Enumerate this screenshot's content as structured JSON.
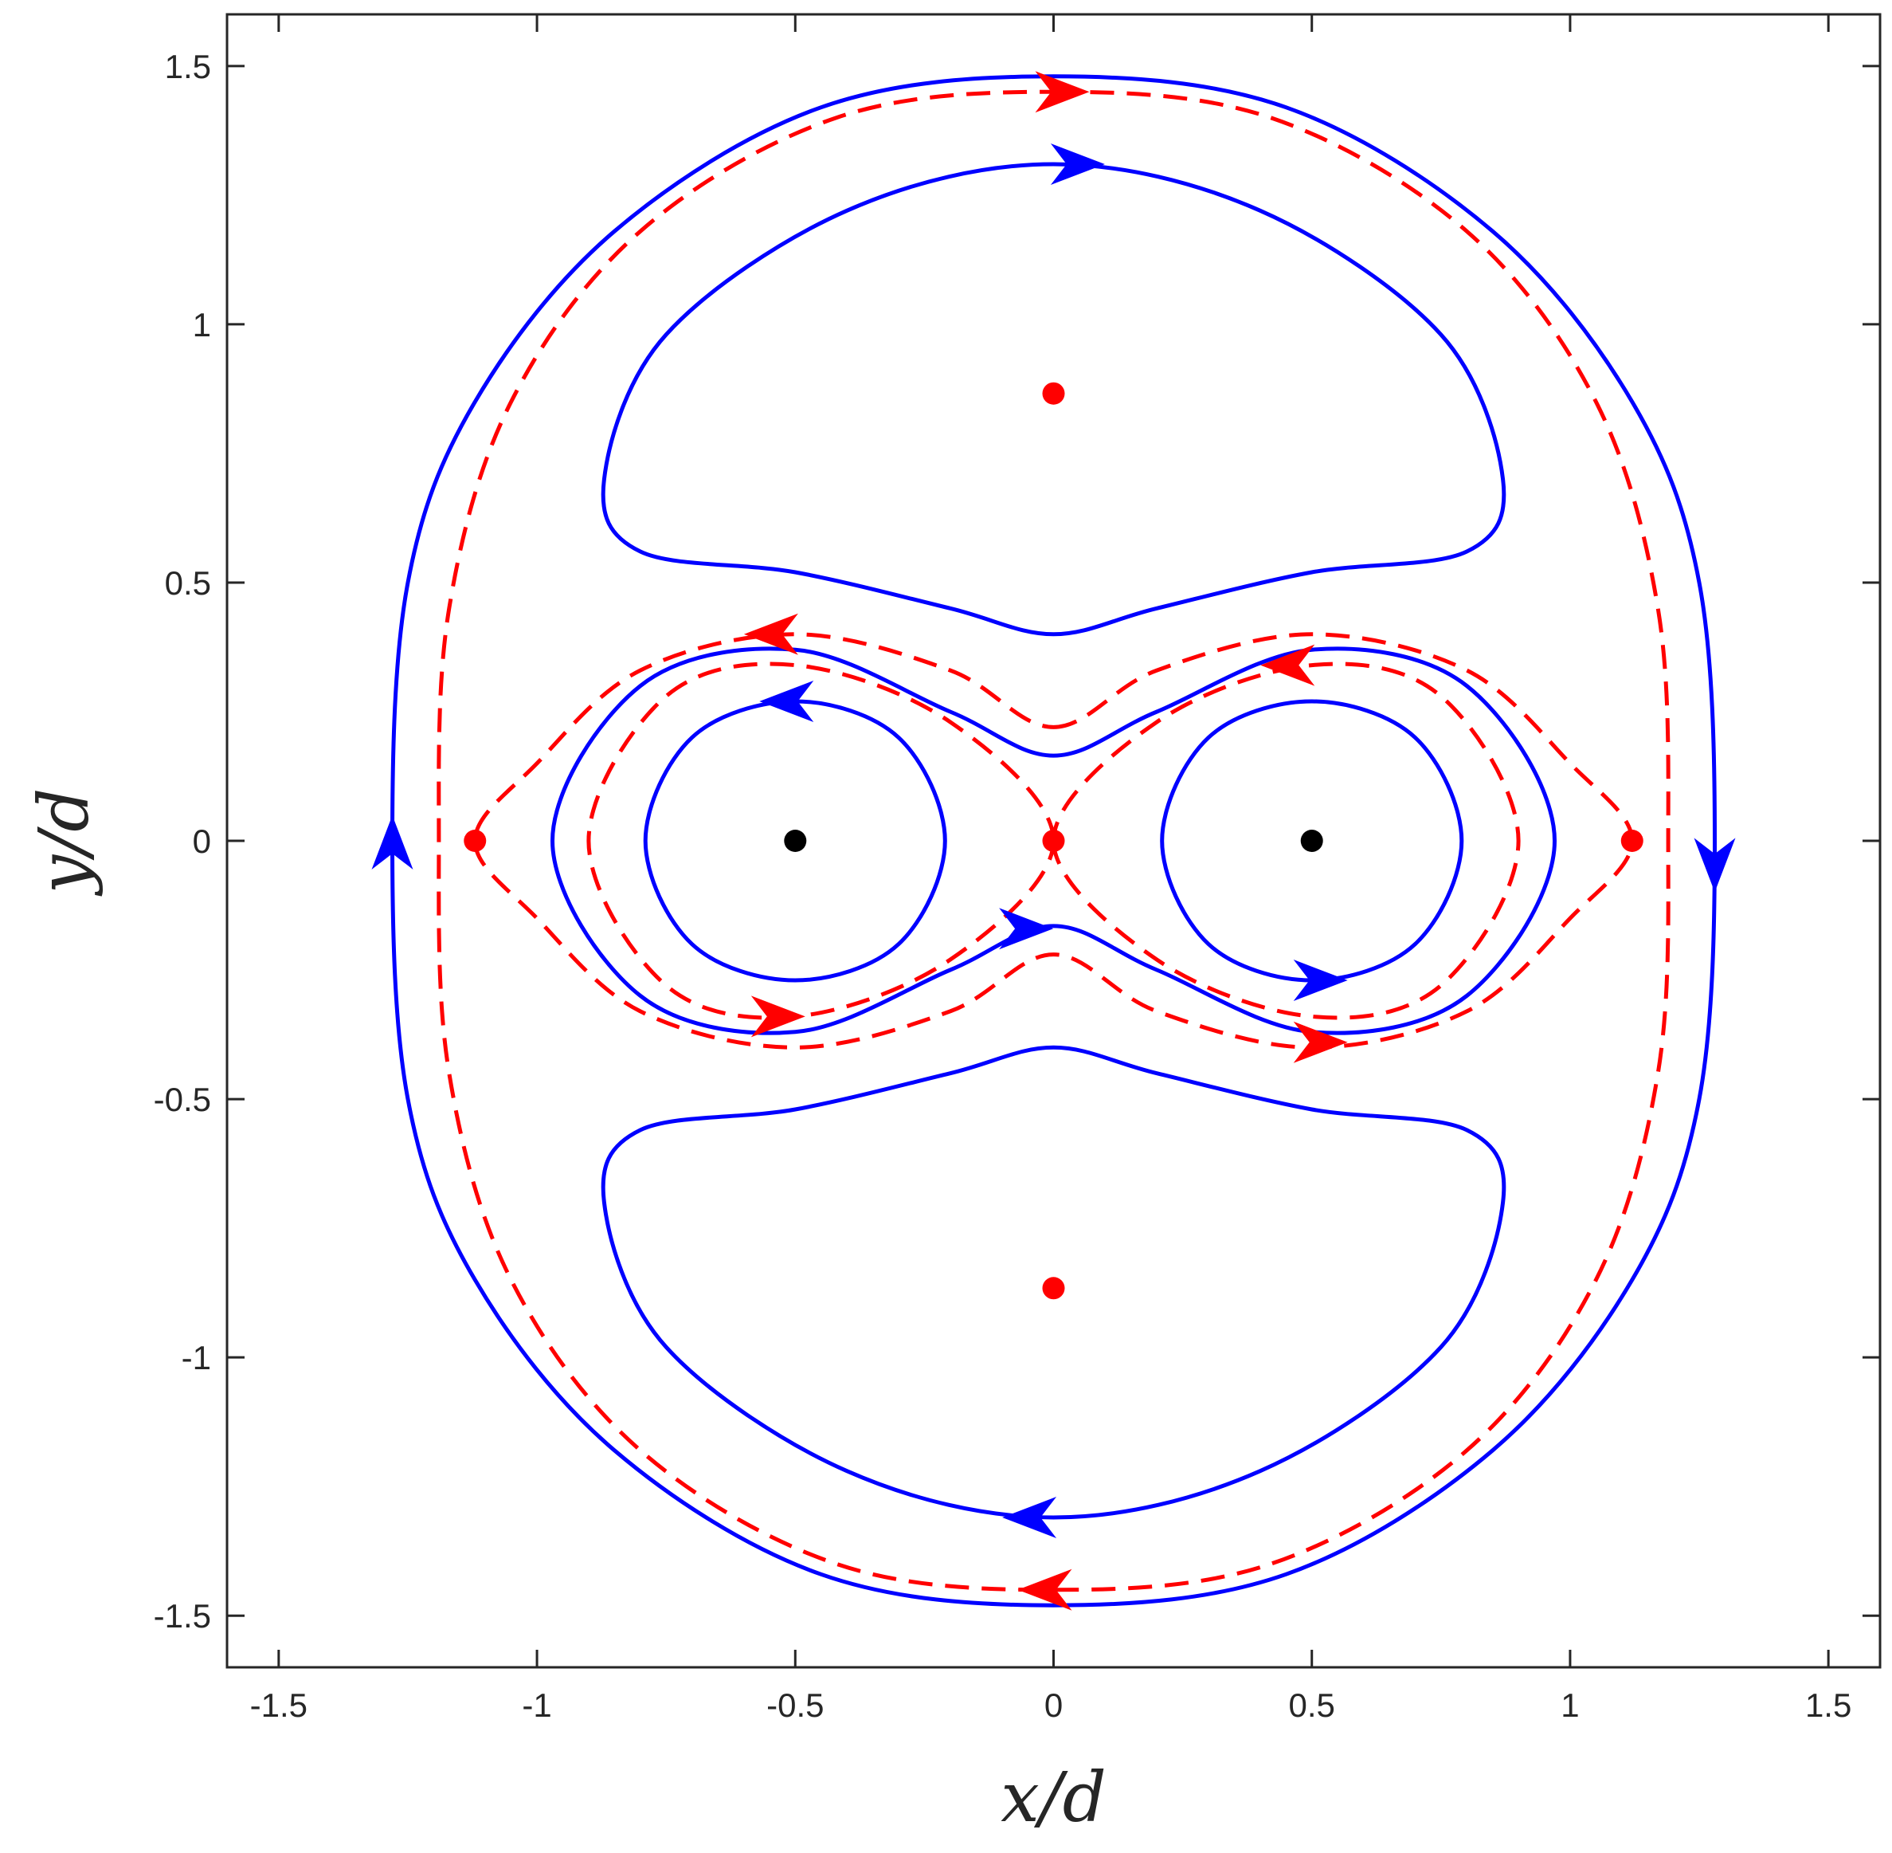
{
  "chart_data": {
    "type": "line",
    "title": "",
    "xlabel": "x/d",
    "ylabel": "y/d",
    "xlim": [
      -1.6,
      1.6
    ],
    "ylim": [
      -1.6,
      1.6
    ],
    "x_ticks": [
      -1.5,
      -1,
      -0.5,
      0,
      0.5,
      1,
      1.5
    ],
    "y_ticks": [
      -1.5,
      -1,
      -0.5,
      0,
      0.5,
      1,
      1.5
    ],
    "x_tick_labels": [
      "-1.5",
      "-1",
      "-0.5",
      "0",
      "0.5",
      "1",
      "1.5"
    ],
    "y_tick_labels": [
      "-1.5",
      "-1",
      "-0.5",
      "0",
      "0.5",
      "1",
      "1.5"
    ],
    "grid": false,
    "colors": {
      "solid": "#0000ff",
      "dashed": "#ff0000",
      "vortex": "#000000",
      "stagnation": "#ff0000",
      "axis": "#262626"
    },
    "series": [
      {
        "style": "solid",
        "color": "#0000ff",
        "closed": true,
        "points": [
          [
            0,
            1.48
          ],
          [
            0.45,
            1.42
          ],
          [
            0.85,
            1.18
          ],
          [
            1.12,
            0.85
          ],
          [
            1.25,
            0.5
          ],
          [
            1.28,
            0
          ],
          [
            1.25,
            -0.5
          ],
          [
            1.12,
            -0.85
          ],
          [
            0.85,
            -1.18
          ],
          [
            0.45,
            -1.42
          ],
          [
            0,
            -1.48
          ],
          [
            -0.45,
            -1.42
          ],
          [
            -0.85,
            -1.18
          ],
          [
            -1.12,
            -0.85
          ],
          [
            -1.25,
            -0.5
          ],
          [
            -1.28,
            0
          ],
          [
            -1.25,
            0.5
          ],
          [
            -1.12,
            0.85
          ],
          [
            -0.85,
            1.18
          ],
          [
            -0.45,
            1.42
          ]
        ],
        "arrows": [
          {
            "x": 1.28,
            "y": -0.05,
            "dir": "down"
          },
          {
            "x": -1.28,
            "y": 0.0,
            "dir": "up"
          }
        ]
      },
      {
        "style": "solid",
        "color": "#0000ff",
        "closed": true,
        "points": [
          [
            0,
            1.31
          ],
          [
            0.4,
            1.22
          ],
          [
            0.75,
            0.98
          ],
          [
            0.87,
            0.7
          ],
          [
            0.8,
            0.56
          ],
          [
            0.5,
            0.52
          ],
          [
            0.2,
            0.45
          ],
          [
            0,
            0.4
          ],
          [
            -0.2,
            0.45
          ],
          [
            -0.5,
            0.52
          ],
          [
            -0.8,
            0.56
          ],
          [
            -0.87,
            0.7
          ],
          [
            -0.75,
            0.98
          ],
          [
            -0.4,
            1.22
          ]
        ],
        "arrows": [
          {
            "x": 0.05,
            "y": 1.31,
            "dir": "right"
          }
        ]
      },
      {
        "style": "solid",
        "color": "#0000ff",
        "closed": true,
        "points": [
          [
            0,
            -1.31
          ],
          [
            0.4,
            -1.22
          ],
          [
            0.75,
            -0.98
          ],
          [
            0.87,
            -0.7
          ],
          [
            0.8,
            -0.56
          ],
          [
            0.5,
            -0.52
          ],
          [
            0.2,
            -0.45
          ],
          [
            0,
            -0.4
          ],
          [
            -0.2,
            -0.45
          ],
          [
            -0.5,
            -0.52
          ],
          [
            -0.8,
            -0.56
          ],
          [
            -0.87,
            -0.7
          ],
          [
            -0.75,
            -0.98
          ],
          [
            -0.4,
            -1.22
          ]
        ],
        "arrows": [
          {
            "x": -0.05,
            "y": -1.31,
            "dir": "left"
          }
        ]
      },
      {
        "style": "solid",
        "color": "#0000ff",
        "closed": true,
        "points": [
          [
            0,
            0.165
          ],
          [
            0.2,
            0.25
          ],
          [
            0.5,
            0.37
          ],
          [
            0.8,
            0.3
          ],
          [
            0.97,
            0.0
          ],
          [
            0.8,
            -0.3
          ],
          [
            0.5,
            -0.37
          ],
          [
            0.2,
            -0.25
          ],
          [
            0,
            -0.165
          ],
          [
            -0.2,
            -0.25
          ],
          [
            -0.5,
            -0.37
          ],
          [
            -0.8,
            -0.3
          ],
          [
            -0.97,
            0.0
          ],
          [
            -0.8,
            0.3
          ],
          [
            -0.5,
            0.37
          ],
          [
            -0.2,
            0.25
          ]
        ],
        "arrows": [
          {
            "x": -0.05,
            "y": -0.17,
            "dir": "right"
          }
        ]
      },
      {
        "style": "solid",
        "color": "#0000ff",
        "closed": true,
        "points": [
          [
            -0.5,
            0.27
          ],
          [
            -0.3,
            0.2
          ],
          [
            -0.21,
            0.0
          ],
          [
            -0.3,
            -0.2
          ],
          [
            -0.5,
            -0.27
          ],
          [
            -0.7,
            -0.2
          ],
          [
            -0.79,
            0.0
          ],
          [
            -0.7,
            0.2
          ]
        ],
        "arrows": [
          {
            "x": -0.52,
            "y": 0.27,
            "dir": "left"
          }
        ]
      },
      {
        "style": "solid",
        "color": "#0000ff",
        "closed": true,
        "points": [
          [
            0.5,
            0.27
          ],
          [
            0.7,
            0.2
          ],
          [
            0.79,
            0.0
          ],
          [
            0.7,
            -0.2
          ],
          [
            0.5,
            -0.27
          ],
          [
            0.3,
            -0.2
          ],
          [
            0.21,
            0.0
          ],
          [
            0.3,
            0.2
          ]
        ],
        "arrows": [
          {
            "x": 0.52,
            "y": -0.27,
            "dir": "right"
          }
        ]
      },
      {
        "style": "dashed",
        "color": "#ff0000",
        "closed": true,
        "points": [
          [
            0,
            1.45
          ],
          [
            0.42,
            1.4
          ],
          [
            0.8,
            1.18
          ],
          [
            1.05,
            0.85
          ],
          [
            1.17,
            0.45
          ],
          [
            1.19,
            0.0
          ],
          [
            1.17,
            -0.45
          ],
          [
            1.05,
            -0.85
          ],
          [
            0.8,
            -1.18
          ],
          [
            0.42,
            -1.4
          ],
          [
            0,
            -1.45
          ],
          [
            -0.42,
            -1.4
          ],
          [
            -0.8,
            -1.18
          ],
          [
            -1.05,
            -0.85
          ],
          [
            -1.17,
            -0.45
          ],
          [
            -1.19,
            0.0
          ],
          [
            -1.17,
            0.45
          ],
          [
            -1.05,
            0.85
          ],
          [
            -0.8,
            1.18
          ],
          [
            -0.42,
            1.4
          ]
        ],
        "arrows": [
          {
            "x": 0.02,
            "y": 1.45,
            "dir": "right"
          },
          {
            "x": -0.02,
            "y": -1.45,
            "dir": "left"
          }
        ]
      },
      {
        "style": "dashed",
        "color": "#ff0000",
        "closed": true,
        "points": [
          [
            0,
            0.22
          ],
          [
            0.2,
            0.33
          ],
          [
            0.5,
            0.4
          ],
          [
            0.8,
            0.33
          ],
          [
            1.0,
            0.15
          ],
          [
            1.12,
            0.0
          ],
          [
            1.0,
            -0.15
          ],
          [
            0.8,
            -0.33
          ],
          [
            0.5,
            -0.4
          ],
          [
            0.2,
            -0.33
          ],
          [
            0,
            -0.22
          ],
          [
            -0.2,
            -0.33
          ],
          [
            -0.5,
            -0.4
          ],
          [
            -0.8,
            -0.33
          ],
          [
            -1.0,
            -0.15
          ],
          [
            -1.12,
            0.0
          ],
          [
            -1.0,
            0.15
          ],
          [
            -0.8,
            0.33
          ],
          [
            -0.5,
            0.4
          ],
          [
            -0.2,
            0.33
          ]
        ],
        "arrows": [
          {
            "x": -0.55,
            "y": 0.4,
            "dir": "left"
          },
          {
            "x": 0.52,
            "y": -0.39,
            "dir": "right"
          }
        ]
      },
      {
        "style": "dashed",
        "color": "#ff0000",
        "closed": true,
        "points": [
          [
            0,
            0
          ],
          [
            -0.2,
            0.23
          ],
          [
            -0.5,
            0.34
          ],
          [
            -0.75,
            0.28
          ],
          [
            -0.9,
            0.0
          ],
          [
            -0.75,
            -0.28
          ],
          [
            -0.5,
            -0.34
          ],
          [
            -0.2,
            -0.23
          ]
        ],
        "arrows": [
          {
            "x": -0.53,
            "y": -0.34,
            "dir": "right"
          }
        ]
      },
      {
        "style": "dashed",
        "color": "#ff0000",
        "closed": true,
        "points": [
          [
            0,
            0
          ],
          [
            0.2,
            -0.23
          ],
          [
            0.5,
            -0.34
          ],
          [
            0.75,
            -0.28
          ],
          [
            0.9,
            0.0
          ],
          [
            0.75,
            0.28
          ],
          [
            0.5,
            0.34
          ],
          [
            0.2,
            0.23
          ]
        ],
        "arrows": [
          {
            "x": 0.45,
            "y": 0.34,
            "dir": "left"
          }
        ]
      }
    ],
    "vortex_points": [
      [
        -0.5,
        0
      ],
      [
        0.5,
        0
      ]
    ],
    "stagnation_points": [
      [
        0,
        0.866
      ],
      [
        0,
        -0.866
      ],
      [
        -1.12,
        0
      ],
      [
        0,
        0
      ],
      [
        1.12,
        0
      ]
    ]
  }
}
